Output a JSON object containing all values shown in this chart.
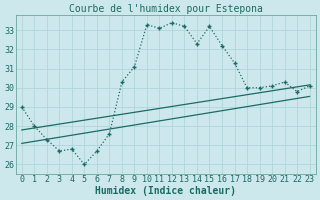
{
  "title": "Courbe de l'humidex pour Estepona",
  "xlabel": "Humidex (Indice chaleur)",
  "background_color": "#cde8ec",
  "grid_color": "#b0d5da",
  "line_color": "#1a6b60",
  "xlim": [
    -0.5,
    23.5
  ],
  "ylim": [
    25.5,
    33.8
  ],
  "yticks": [
    26,
    27,
    28,
    29,
    30,
    31,
    32,
    33
  ],
  "xticks": [
    0,
    1,
    2,
    3,
    4,
    5,
    6,
    7,
    8,
    9,
    10,
    11,
    12,
    13,
    14,
    15,
    16,
    17,
    18,
    19,
    20,
    21,
    22,
    23
  ],
  "main_x": [
    0,
    1,
    2,
    3,
    4,
    5,
    6,
    7,
    8,
    9,
    10,
    11,
    12,
    13,
    14,
    15,
    16,
    17,
    18,
    19,
    20,
    21,
    22,
    23
  ],
  "main_y": [
    29.0,
    28.0,
    27.3,
    26.7,
    26.8,
    26.0,
    26.7,
    27.6,
    30.3,
    31.1,
    33.3,
    33.1,
    33.4,
    33.2,
    32.3,
    33.2,
    32.2,
    31.3,
    30.0,
    30.0,
    30.1,
    30.3,
    29.8,
    30.1
  ],
  "line1_x": [
    0,
    23
  ],
  "line1_y": [
    27.8,
    30.15
  ],
  "line2_x": [
    0,
    23
  ],
  "line2_y": [
    27.1,
    29.55
  ],
  "title_fontsize": 7,
  "label_fontsize": 7,
  "tick_fontsize": 6
}
